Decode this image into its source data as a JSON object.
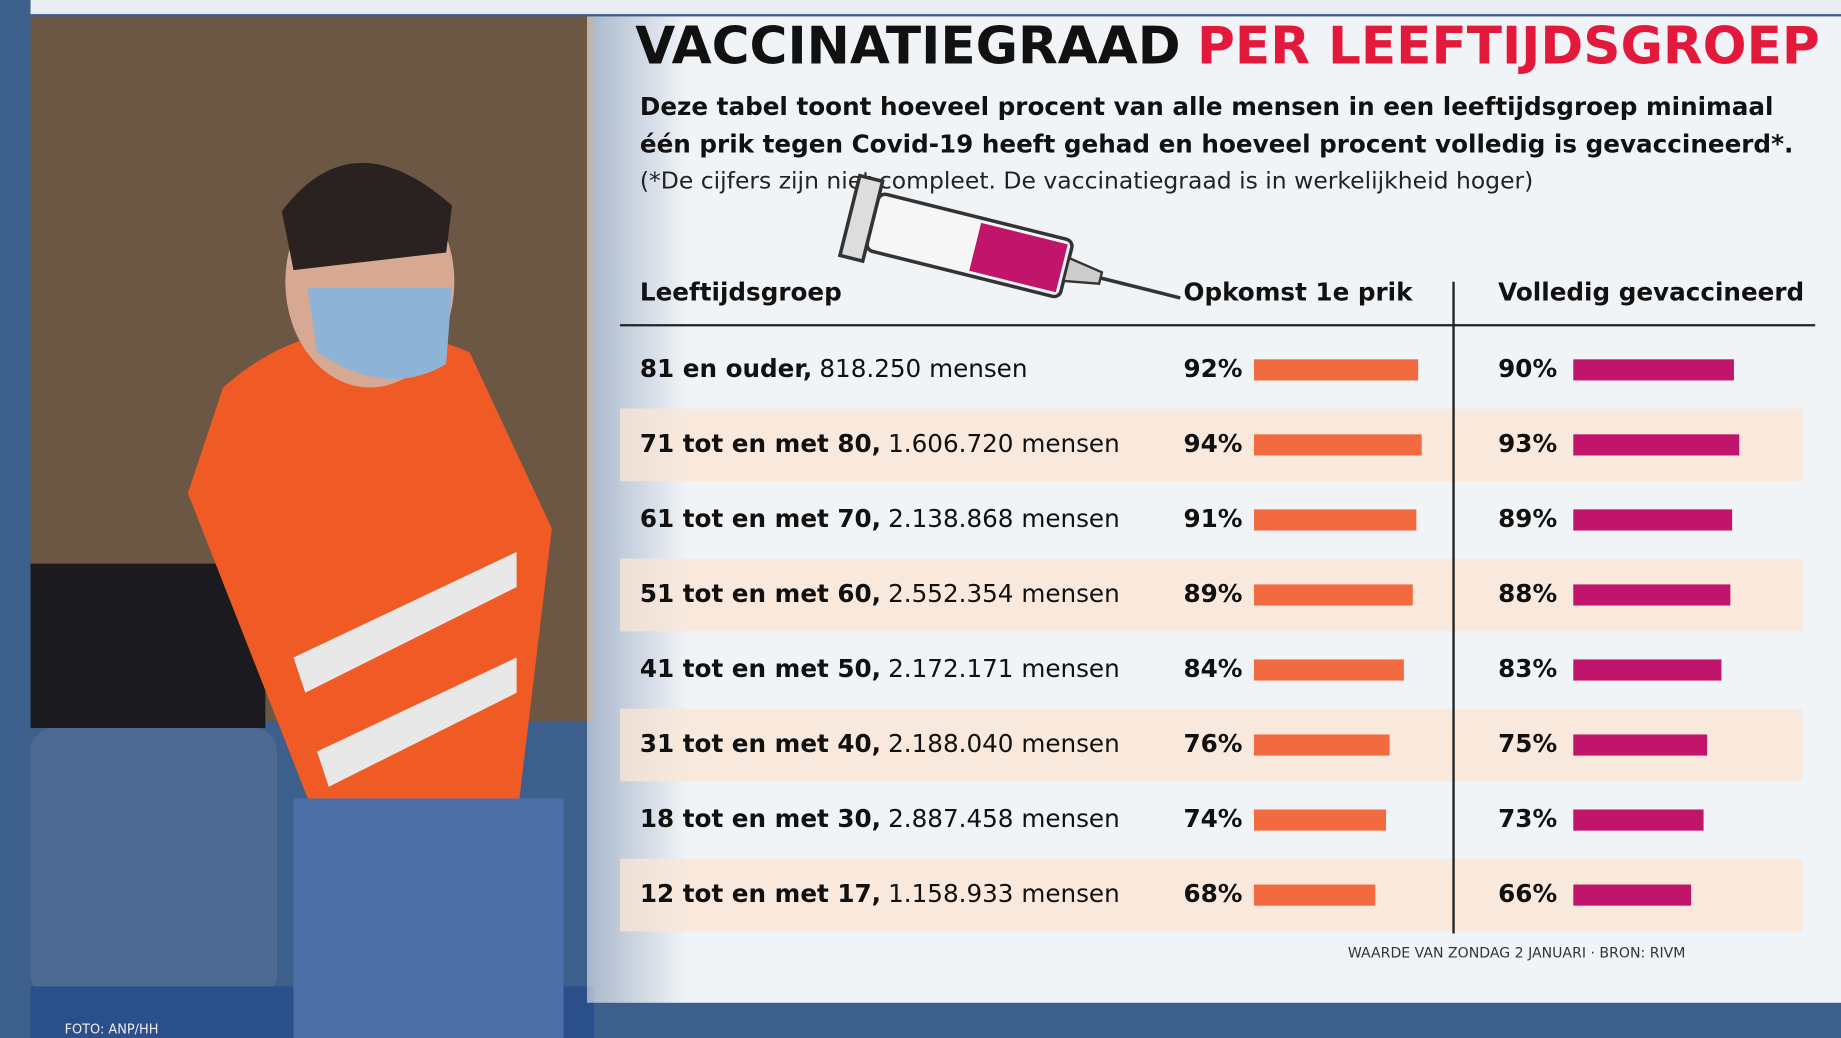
{
  "header": {
    "title_black": "VACCINATIEGRAAD",
    "title_red": "PER LEEFTIJDSGROEP",
    "intro_line1": "Deze tabel toont hoeveel procent van alle mensen in een leeftijdsgroep minimaal",
    "intro_line2": "één prik tegen Covid-19 heeft gehad en hoeveel procent volledig is gevaccineerd*.",
    "note": "(*De cijfers zijn niet compleet. De vaccinatiegraad is in werkelijkheid hoger)"
  },
  "table": {
    "columns": [
      "Leeftijdsgroep",
      "Opkomst 1e prik",
      "Volledig gevaccineerd"
    ],
    "first_color": "#f26a3f",
    "full_color": "#c0156b",
    "rows": [
      {
        "group": "81 en ouder,",
        "people": "818.250 mensen",
        "first": {
          "value": 92,
          "label": "92%"
        },
        "full": {
          "value": 90,
          "label": "90%"
        }
      },
      {
        "group": "71 tot en met 80,",
        "people": "1.606.720 mensen",
        "first": {
          "value": 94,
          "label": "94%"
        },
        "full": {
          "value": 93,
          "label": "93%"
        }
      },
      {
        "group": "61 tot en met 70,",
        "people": "2.138.868 mensen",
        "first": {
          "value": 91,
          "label": "91%"
        },
        "full": {
          "value": 89,
          "label": "89%"
        }
      },
      {
        "group": "51 tot en met 60,",
        "people": "2.552.354 mensen",
        "first": {
          "value": 89,
          "label": "89%"
        },
        "full": {
          "value": 88,
          "label": "88%"
        }
      },
      {
        "group": "41 tot en met 50,",
        "people": "2.172.171 mensen",
        "first": {
          "value": 84,
          "label": "84%"
        },
        "full": {
          "value": 83,
          "label": "83%"
        }
      },
      {
        "group": "31 tot en met 40,",
        "people": "2.188.040 mensen",
        "first": {
          "value": 76,
          "label": "76%"
        },
        "full": {
          "value": 75,
          "label": "75%"
        }
      },
      {
        "group": "18 tot en met 30,",
        "people": "2.887.458 mensen",
        "first": {
          "value": 74,
          "label": "74%"
        },
        "full": {
          "value": 73,
          "label": "73%"
        }
      },
      {
        "group": "12 tot en met 17,",
        "people": "1.158.933 mensen",
        "first": {
          "value": 68,
          "label": "68%"
        },
        "full": {
          "value": 66,
          "label": "66%"
        }
      }
    ]
  },
  "footer": {
    "source": "WAARDE VAN ZONDAG 2 JANUARI · BRON: RIVM",
    "photo_credit": "FOTO: ANP/HH"
  }
}
